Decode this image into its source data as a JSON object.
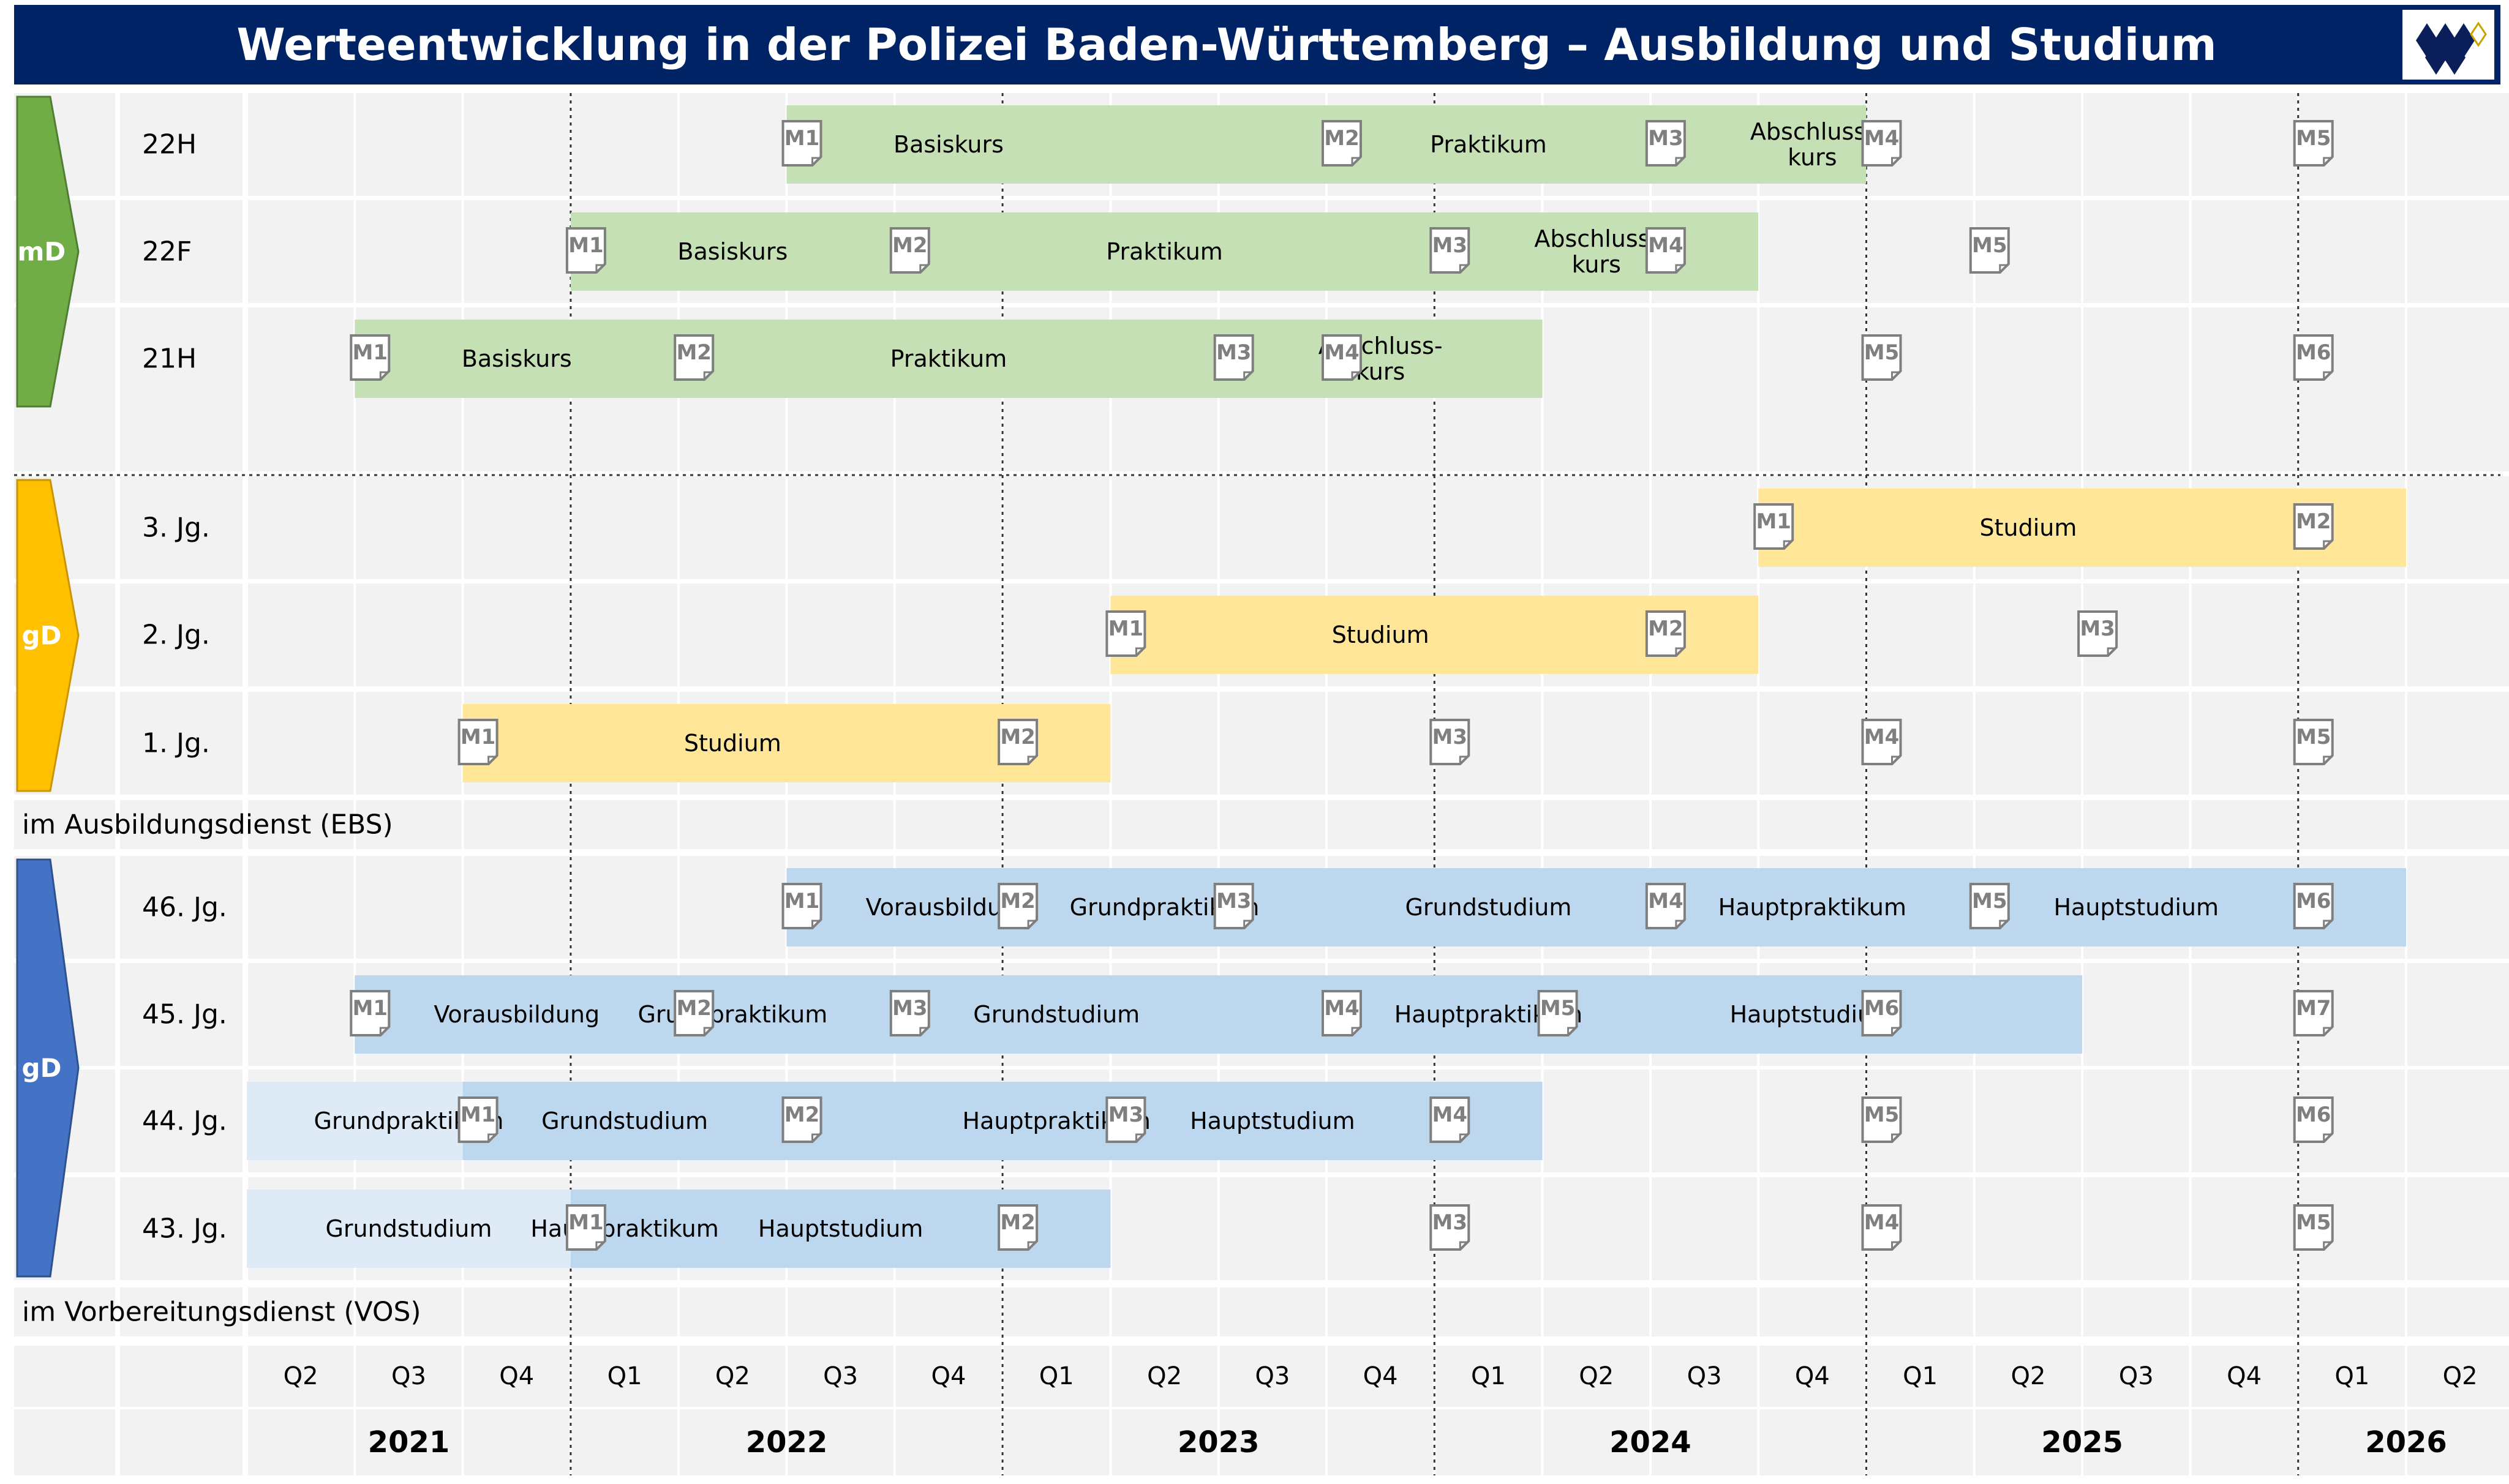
{
  "title": "Werteentwicklung in der Polizei Baden-Württemberg – Ausbildung und Studium",
  "logo_icon": "polizei-bw-diamond-logo",
  "colors": {
    "header": "#002366",
    "mD": "#70AD47",
    "gD_ebs": "#FFC000",
    "gD_vos": "#4472C4",
    "bar_green": "#C5E0B4",
    "bar_yellow": "#FFE699",
    "bar_blue": "#BDD7EE",
    "bar_blue_light": "#DEEBF7",
    "grid_bg": "#F2F2F2"
  },
  "chart_data": {
    "type": "gantt",
    "x_unit": "quarter",
    "quarters": [
      {
        "year": "2021",
        "q": "Q2"
      },
      {
        "year": "2021",
        "q": "Q3"
      },
      {
        "year": "2021",
        "q": "Q4"
      },
      {
        "year": "2022",
        "q": "Q1"
      },
      {
        "year": "2022",
        "q": "Q2"
      },
      {
        "year": "2022",
        "q": "Q3"
      },
      {
        "year": "2022",
        "q": "Q4"
      },
      {
        "year": "2023",
        "q": "Q1"
      },
      {
        "year": "2023",
        "q": "Q2"
      },
      {
        "year": "2023",
        "q": "Q3"
      },
      {
        "year": "2023",
        "q": "Q4"
      },
      {
        "year": "2024",
        "q": "Q1"
      },
      {
        "year": "2024",
        "q": "Q2"
      },
      {
        "year": "2024",
        "q": "Q3"
      },
      {
        "year": "2024",
        "q": "Q4"
      },
      {
        "year": "2025",
        "q": "Q1"
      },
      {
        "year": "2025",
        "q": "Q2"
      },
      {
        "year": "2025",
        "q": "Q3"
      },
      {
        "year": "2025",
        "q": "Q4"
      },
      {
        "year": "2026",
        "q": "Q1"
      },
      {
        "year": "2026",
        "q": "Q2"
      }
    ],
    "years": [
      "2021",
      "2022",
      "2023",
      "2024",
      "2025",
      "2026"
    ],
    "groups": [
      {
        "label": "mD",
        "color": "#70AD47",
        "caption": "",
        "rows": [
          {
            "label": "22H",
            "bar_color": "#C5E0B4",
            "bars": [
              {
                "start": "2022-Q3",
                "end": "2024-Q4"
              }
            ],
            "phases": [
              {
                "label": "Basiskurs",
                "at": "2022-Q4"
              },
              {
                "label": "Praktikum",
                "at": "2024-Q1"
              },
              {
                "label": "Abschluss-\nkurs",
                "at": "2024-Q4"
              }
            ],
            "milestones": [
              {
                "label": "M1",
                "at": "2022-Q3"
              },
              {
                "label": "M2",
                "at": "2023-Q4"
              },
              {
                "label": "M3",
                "at": "2024-Q3"
              },
              {
                "label": "M4",
                "at": "2025-Q1"
              },
              {
                "label": "M5",
                "at": "2026-Q1"
              }
            ]
          },
          {
            "label": "22F",
            "bar_color": "#C5E0B4",
            "bars": [
              {
                "start": "2022-Q1",
                "end": "2024-Q3"
              }
            ],
            "phases": [
              {
                "label": "Basiskurs",
                "at": "2022-Q2"
              },
              {
                "label": "Praktikum",
                "at": "2023-Q2"
              },
              {
                "label": "Abschluss-\nkurs",
                "at": "2024-Q2"
              }
            ],
            "milestones": [
              {
                "label": "M1",
                "at": "2022-Q1"
              },
              {
                "label": "M2",
                "at": "2022-Q4"
              },
              {
                "label": "M3",
                "at": "2024-Q1"
              },
              {
                "label": "M4",
                "at": "2024-Q3"
              },
              {
                "label": "M5",
                "at": "2025-Q2"
              }
            ]
          },
          {
            "label": "21H",
            "bar_color": "#C5E0B4",
            "bars": [
              {
                "start": "2021-Q3",
                "end": "2024-Q1"
              }
            ],
            "phases": [
              {
                "label": "Basiskurs",
                "at": "2021-Q4"
              },
              {
                "label": "Praktikum",
                "at": "2022-Q4"
              },
              {
                "label": "Abschluss-\nkurs",
                "at": "2023-Q4"
              }
            ],
            "milestones": [
              {
                "label": "M1",
                "at": "2021-Q3"
              },
              {
                "label": "M2",
                "at": "2022-Q2"
              },
              {
                "label": "M3",
                "at": "2023-Q3"
              },
              {
                "label": "M4",
                "at": "2023-Q4"
              },
              {
                "label": "M5",
                "at": "2025-Q1"
              },
              {
                "label": "M6",
                "at": "2026-Q1"
              }
            ]
          }
        ]
      },
      {
        "label": "gD",
        "color": "#FFC000",
        "caption": "im Ausbildungsdienst (EBS)",
        "rows": [
          {
            "label": "3. Jg.",
            "bar_color": "#FFE699",
            "bars": [
              {
                "start": "2024-Q4",
                "end": "2026-Q1"
              }
            ],
            "phases": [
              {
                "label": "Studium",
                "at": "2025-Q2"
              }
            ],
            "milestones": [
              {
                "label": "M1",
                "at": "2024-Q4"
              },
              {
                "label": "M2",
                "at": "2026-Q1"
              }
            ]
          },
          {
            "label": "2. Jg.",
            "bar_color": "#FFE699",
            "bars": [
              {
                "start": "2023-Q2",
                "end": "2024-Q3"
              }
            ],
            "phases": [
              {
                "label": "Studium",
                "at": "2023-Q4"
              }
            ],
            "milestones": [
              {
                "label": "M1",
                "at": "2023-Q2"
              },
              {
                "label": "M2",
                "at": "2024-Q3"
              },
              {
                "label": "M3",
                "at": "2025-Q3"
              }
            ]
          },
          {
            "label": "1. Jg.",
            "bar_color": "#FFE699",
            "bars": [
              {
                "start": "2021-Q4",
                "end": "2023-Q1"
              }
            ],
            "phases": [
              {
                "label": "Studium",
                "at": "2022-Q2"
              }
            ],
            "milestones": [
              {
                "label": "M1",
                "at": "2021-Q4"
              },
              {
                "label": "M2",
                "at": "2023-Q1"
              },
              {
                "label": "M3",
                "at": "2024-Q1"
              },
              {
                "label": "M4",
                "at": "2025-Q1"
              },
              {
                "label": "M5",
                "at": "2026-Q1"
              }
            ]
          }
        ]
      },
      {
        "label": "gD",
        "color": "#4472C4",
        "caption": "im Vorbereitungsdienst (VOS)",
        "rows": [
          {
            "label": "46. Jg.",
            "bar_color": "#BDD7EE",
            "bars": [
              {
                "start": "2022-Q3",
                "end": "2026-Q1"
              }
            ],
            "phases": [
              {
                "label": "Vorausbildung",
                "at": "2022-Q4"
              },
              {
                "label": "Grundpraktikum",
                "at": "2023-Q2"
              },
              {
                "label": "Grundstudium",
                "at": "2024-Q1"
              },
              {
                "label": "Hauptpraktikum",
                "at": "2024-Q4"
              },
              {
                "label": "Hauptstudium",
                "at": "2025-Q3"
              }
            ],
            "milestones": [
              {
                "label": "M1",
                "at": "2022-Q3"
              },
              {
                "label": "M2",
                "at": "2023-Q1"
              },
              {
                "label": "M3",
                "at": "2023-Q3"
              },
              {
                "label": "M4",
                "at": "2024-Q3"
              },
              {
                "label": "M5",
                "at": "2025-Q2"
              },
              {
                "label": "M6",
                "at": "2026-Q1"
              }
            ]
          },
          {
            "label": "45. Jg.",
            "bar_color": "#BDD7EE",
            "bars": [
              {
                "start": "2021-Q3",
                "end": "2025-Q2"
              }
            ],
            "phases": [
              {
                "label": "Vorausbildung",
                "at": "2021-Q4"
              },
              {
                "label": "Grundpraktikum",
                "at": "2022-Q2"
              },
              {
                "label": "Grundstudium",
                "at": "2023-Q1"
              },
              {
                "label": "Hauptpraktikum",
                "at": "2024-Q1"
              },
              {
                "label": "Hauptstudium",
                "at": "2024-Q4"
              }
            ],
            "milestones": [
              {
                "label": "M1",
                "at": "2021-Q3"
              },
              {
                "label": "M2",
                "at": "2022-Q2"
              },
              {
                "label": "M3",
                "at": "2022-Q4"
              },
              {
                "label": "M4",
                "at": "2023-Q4"
              },
              {
                "label": "M5",
                "at": "2024-Q2"
              },
              {
                "label": "M6",
                "at": "2025-Q1"
              },
              {
                "label": "M7",
                "at": "2026-Q1"
              }
            ]
          },
          {
            "label": "44. Jg.",
            "bar_color": "#BDD7EE",
            "bars": [
              {
                "start": "2021-Q2",
                "end": "2021-Q3",
                "color": "#DEEBF7"
              },
              {
                "start": "2021-Q4",
                "end": "2024-Q1"
              }
            ],
            "phases": [
              {
                "label": "Grundpraktikum",
                "at": "2021-Q3"
              },
              {
                "label": "Grundstudium",
                "at": "2022-Q1"
              },
              {
                "label": "Hauptpraktikum",
                "at": "2023-Q1"
              },
              {
                "label": "Hauptstudium",
                "at": "2023-Q3"
              }
            ],
            "milestones": [
              {
                "label": "M1",
                "at": "2021-Q4"
              },
              {
                "label": "M2",
                "at": "2022-Q3"
              },
              {
                "label": "M3",
                "at": "2023-Q2"
              },
              {
                "label": "M4",
                "at": "2024-Q1"
              },
              {
                "label": "M5",
                "at": "2025-Q1"
              },
              {
                "label": "M6",
                "at": "2026-Q1"
              }
            ]
          },
          {
            "label": "43. Jg.",
            "bar_color": "#BDD7EE",
            "bars": [
              {
                "start": "2021-Q2",
                "end": "2022-Q1",
                "color": "#DEEBF7"
              },
              {
                "start": "2022-Q1",
                "end": "2023-Q1"
              }
            ],
            "phases": [
              {
                "label": "Grundstudium",
                "at": "2021-Q3"
              },
              {
                "label": "Hauptpraktikum",
                "at": "2022-Q1"
              },
              {
                "label": "Hauptstudium",
                "at": "2022-Q3"
              }
            ],
            "milestones": [
              {
                "label": "M1",
                "at": "2022-Q1"
              },
              {
                "label": "M2",
                "at": "2023-Q1"
              },
              {
                "label": "M3",
                "at": "2024-Q1"
              },
              {
                "label": "M4",
                "at": "2025-Q1"
              },
              {
                "label": "M5",
                "at": "2026-Q1"
              }
            ]
          }
        ]
      }
    ]
  }
}
